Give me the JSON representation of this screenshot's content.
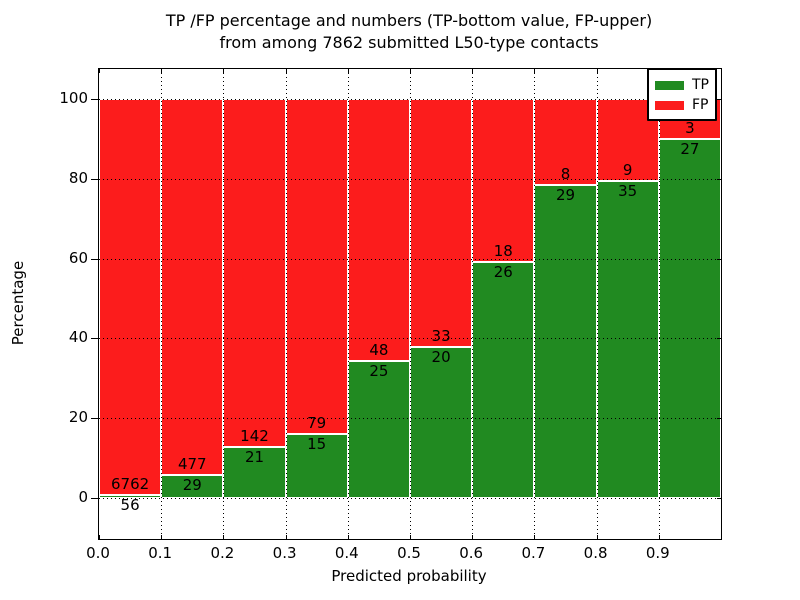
{
  "title": {
    "line1": "TP /FP percentage and numbers (TP-bottom value, FP-upper)",
    "line2": "from among 7862 submitted L50-type contacts"
  },
  "axes": {
    "xlabel": "Predicted probability",
    "ylabel": "Percentage",
    "yticks": [
      0,
      20,
      40,
      60,
      80,
      100
    ],
    "ytick_labels": [
      "0",
      "20",
      "40",
      "60",
      "80",
      "100"
    ],
    "xtick_labels": [
      "0.0",
      "0.1",
      "0.2",
      "0.3",
      "0.4",
      "0.5",
      "0.6",
      "0.7",
      "0.8",
      "0.9"
    ],
    "xlim": [
      0.0,
      1.0
    ],
    "ylim": [
      -10.3,
      107.5
    ],
    "grid_style": "dotted",
    "grid_color": "#000000"
  },
  "legend": {
    "position": "upper-right",
    "items": [
      {
        "label": "TP",
        "color": "#218a21"
      },
      {
        "label": "FP",
        "color": "#fc1c1c"
      }
    ]
  },
  "chart_data": {
    "type": "bar",
    "stacked": true,
    "normalized": "percent (each bin stacks to 100%)",
    "total_contacts": 7862,
    "bin_width": 0.1,
    "categories": [
      "0.0-0.1",
      "0.1-0.2",
      "0.2-0.3",
      "0.3-0.4",
      "0.4-0.5",
      "0.5-0.6",
      "0.6-0.7",
      "0.7-0.8",
      "0.8-0.9",
      "0.9-1.0"
    ],
    "series": [
      {
        "name": "TP",
        "color": "#218a21",
        "counts": [
          56,
          29,
          21,
          15,
          25,
          20,
          26,
          29,
          35,
          27
        ]
      },
      {
        "name": "FP",
        "color": "#fc1c1c",
        "counts": [
          6762,
          477,
          142,
          79,
          48,
          33,
          18,
          8,
          9,
          3
        ]
      }
    ],
    "tp_percentages": [
      0.8,
      5.7,
      12.9,
      16.0,
      34.2,
      37.7,
      59.1,
      78.4,
      79.5,
      90.0
    ],
    "annotation_rule": "FP count printed above the TP/FP boundary, TP count printed below it"
  }
}
